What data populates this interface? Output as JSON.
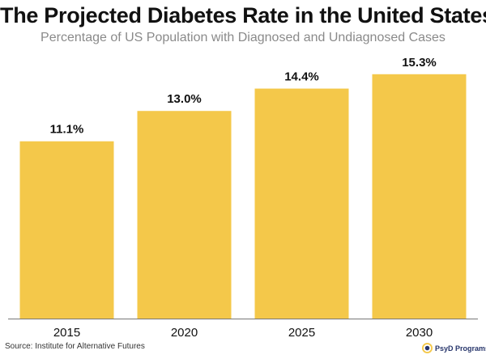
{
  "header": {
    "title": "The Projected Diabetes Rate in the United States",
    "subtitle": "Percentage of US Population with Diagnosed and Undiagnosed Cases"
  },
  "footer": {
    "source": "Source: Institute for Alternative Futures",
    "brand": "PsyD Programs"
  },
  "colors": {
    "bar": "#F4C84A",
    "baseline": "#777777",
    "text": "#111111",
    "brand": "#27356B"
  },
  "chart_data": {
    "type": "bar",
    "title": "The Projected Diabetes Rate in the United States",
    "subtitle": "Percentage of US Population with Diagnosed and Undiagnosed Cases",
    "xlabel": "",
    "ylabel": "",
    "categories": [
      "2015",
      "2020",
      "2025",
      "2030"
    ],
    "values": [
      11.1,
      13.0,
      14.4,
      15.3
    ],
    "value_labels": [
      "11.1%",
      "13.0%",
      "14.4%",
      "15.3%"
    ],
    "ylim": [
      0,
      16.15
    ],
    "grid": false,
    "legend": "none"
  }
}
